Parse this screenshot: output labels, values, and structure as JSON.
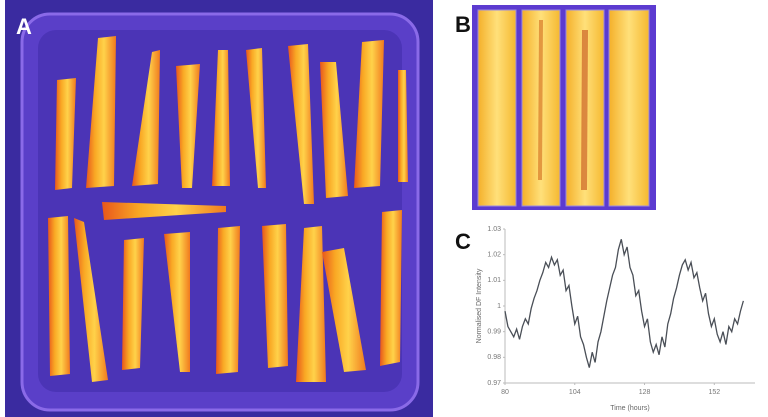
{
  "panel_labels": [
    "A",
    "B",
    "C"
  ],
  "chart_data": {
    "type": "line",
    "ylabel": "Normalised DF Intensity",
    "xlabel": "Time (hours)",
    "color": "#4a4f57",
    "xlim": [
      80,
      166
    ],
    "xticks": [
      80,
      104,
      128,
      152
    ],
    "ylim": [
      0.97,
      1.03
    ],
    "yticks": [
      0.97,
      0.98,
      0.99,
      1,
      1.01,
      1.02,
      1.03
    ],
    "x": [
      80,
      81,
      82,
      83,
      84,
      85,
      86,
      87,
      88,
      89,
      90,
      91,
      92,
      93,
      94,
      95,
      96,
      97,
      98,
      99,
      100,
      101,
      102,
      103,
      104,
      105,
      106,
      107,
      108,
      109,
      110,
      111,
      112,
      113,
      114,
      115,
      116,
      117,
      118,
      119,
      120,
      121,
      122,
      123,
      124,
      125,
      126,
      127,
      128,
      129,
      130,
      131,
      132,
      133,
      134,
      135,
      136,
      137,
      138,
      139,
      140,
      141,
      142,
      143,
      144,
      145,
      146,
      147,
      148,
      149,
      150,
      151,
      152,
      153,
      154,
      155,
      156,
      157,
      158,
      159,
      160,
      161,
      162
    ],
    "values": [
      0.998,
      0.992,
      0.99,
      0.988,
      0.991,
      0.987,
      0.992,
      0.995,
      0.993,
      0.999,
      1.003,
      1.006,
      1.01,
      1.013,
      1.017,
      1.015,
      1.019,
      1.016,
      1.018,
      1.012,
      1.014,
      1.006,
      1.008,
      1.0,
      0.993,
      0.996,
      0.988,
      0.985,
      0.98,
      0.976,
      0.982,
      0.978,
      0.986,
      0.99,
      0.996,
      1.002,
      1.007,
      1.012,
      1.015,
      1.022,
      1.026,
      1.02,
      1.023,
      1.015,
      1.012,
      1.004,
      1.006,
      0.998,
      0.992,
      0.995,
      0.986,
      0.982,
      0.985,
      0.981,
      0.988,
      0.984,
      0.993,
      0.997,
      1.003,
      1.007,
      1.012,
      1.016,
      1.018,
      1.014,
      1.017,
      1.011,
      1.013,
      1.007,
      1.002,
      1.005,
      0.997,
      0.992,
      0.995,
      0.989,
      0.986,
      0.99,
      0.985,
      0.992,
      0.99,
      0.995,
      0.993,
      0.998,
      1.002
    ]
  }
}
